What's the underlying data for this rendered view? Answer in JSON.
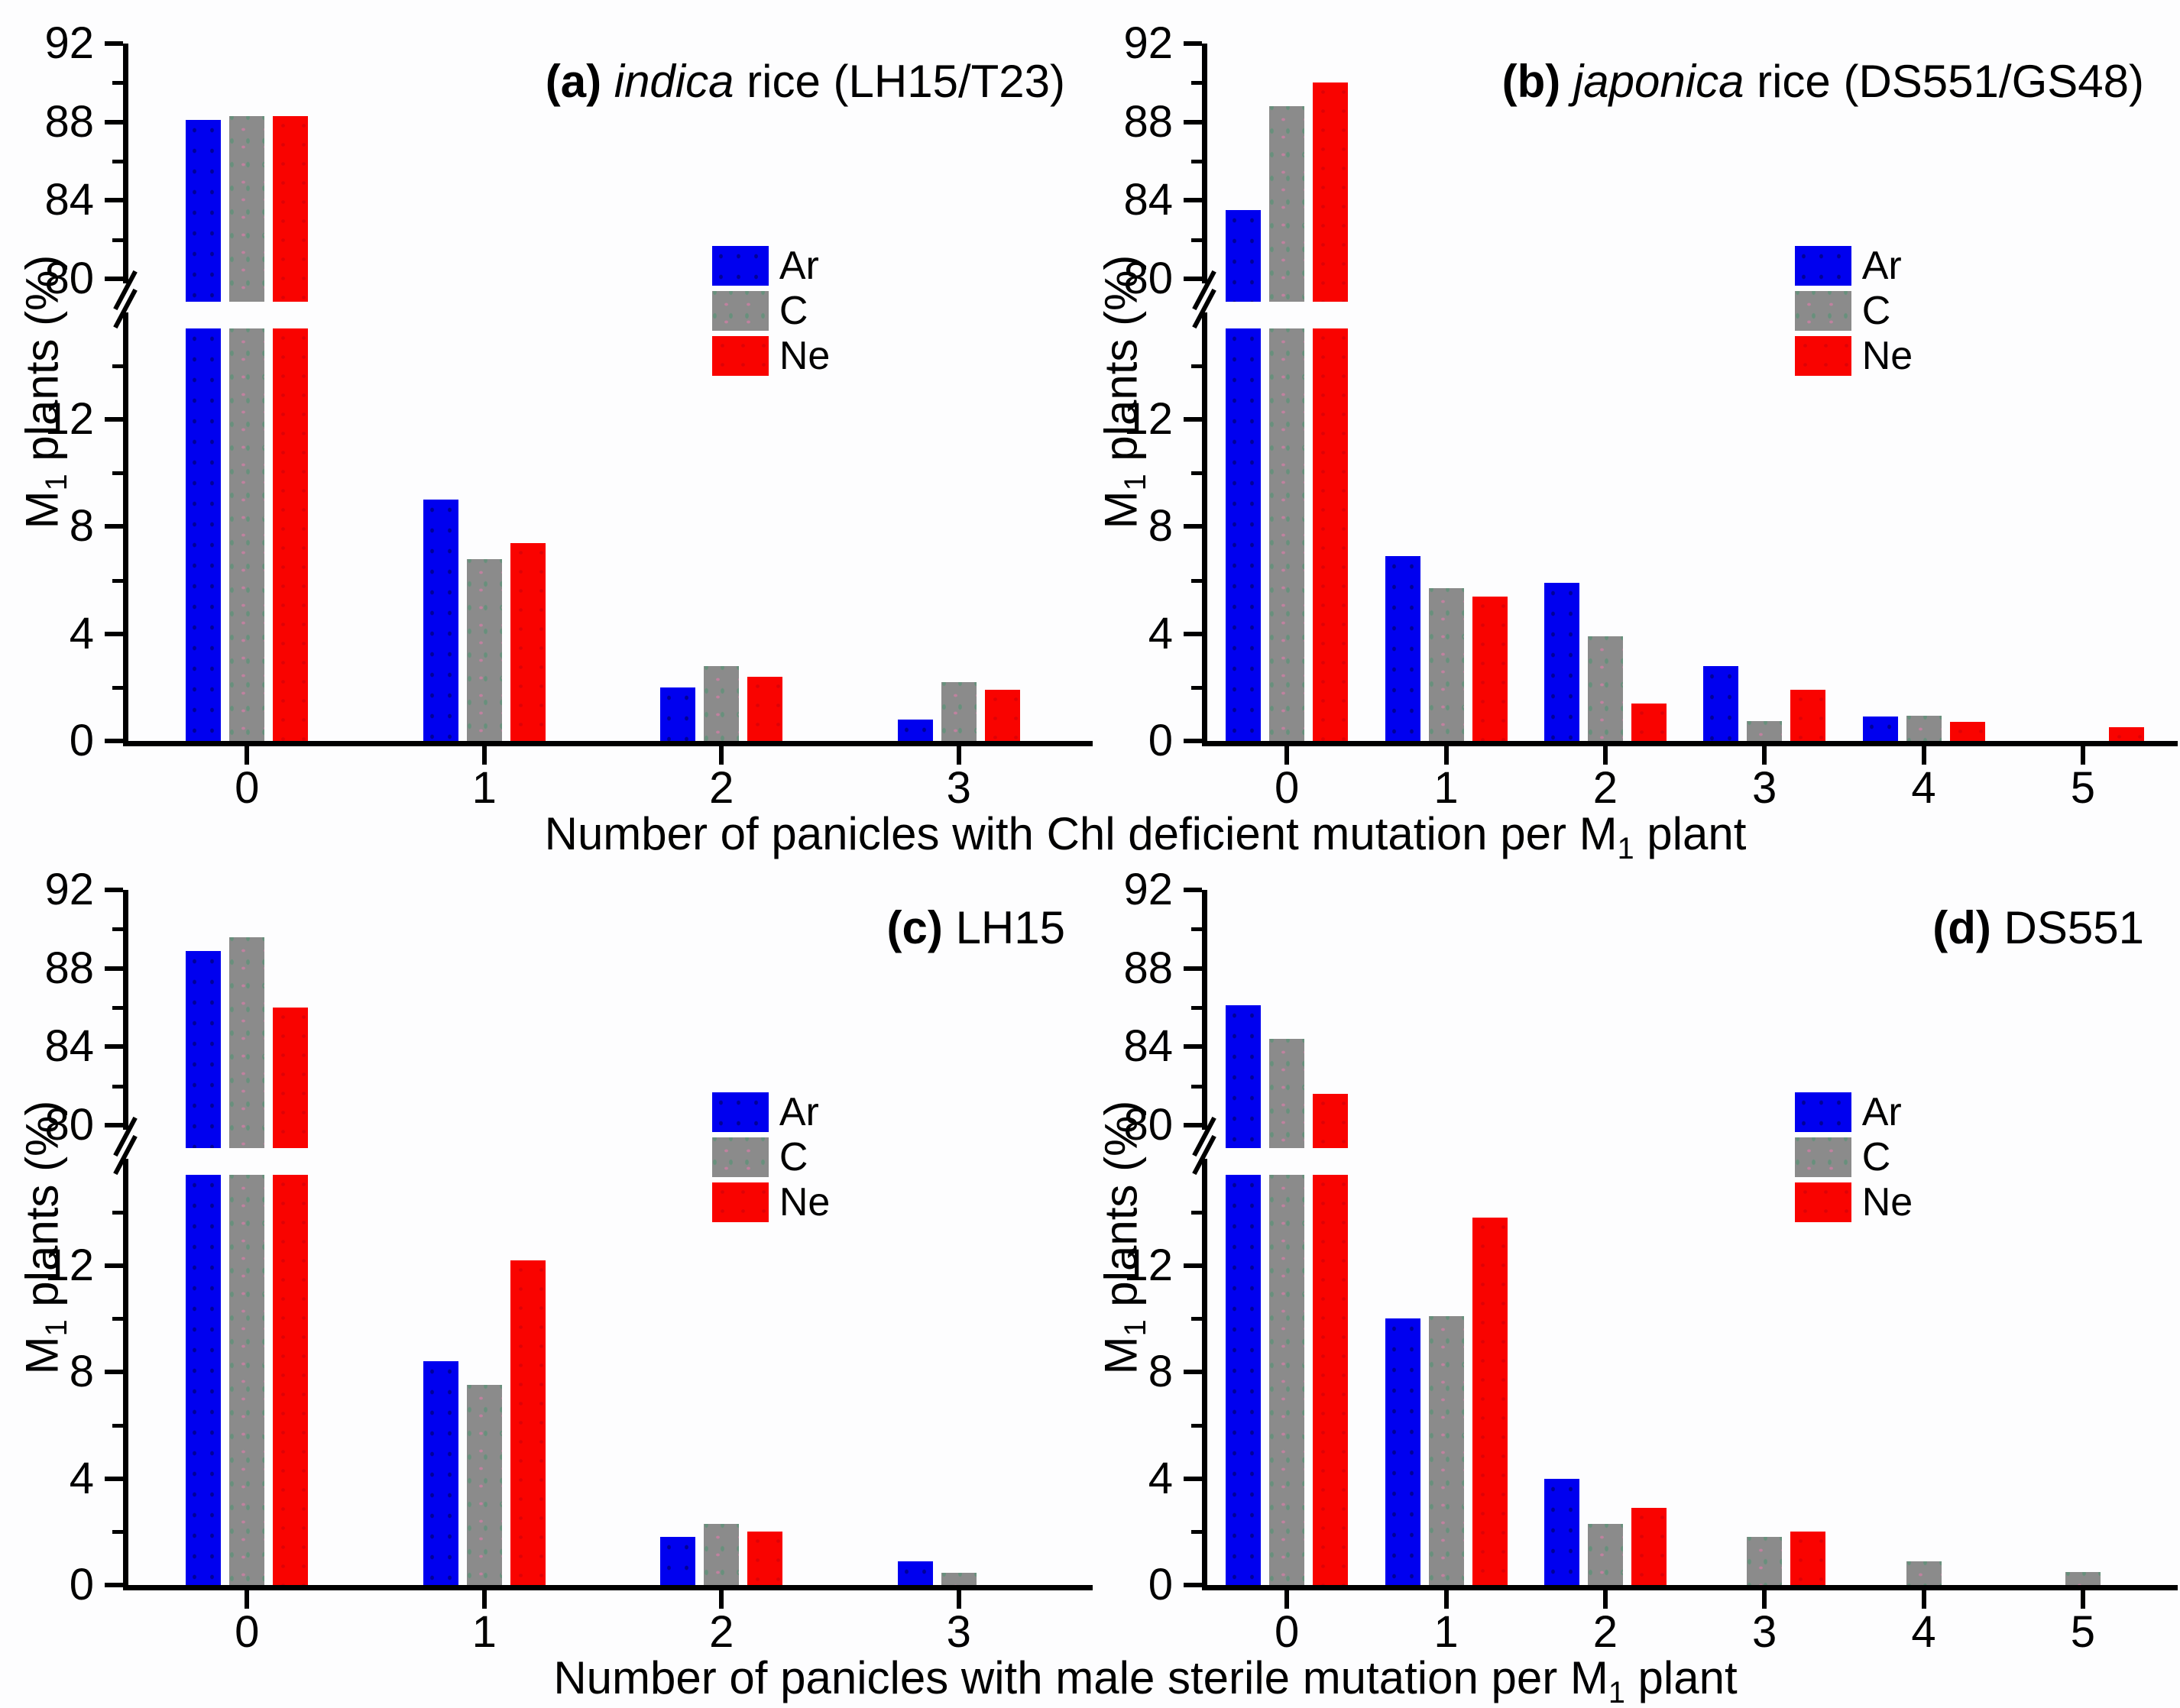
{
  "figure": {
    "y_label": {
      "prefix": "M",
      "sub": "1",
      "rest": " plants (%)"
    },
    "x_label_top": {
      "prefix": "Number of panicles with Chl deficient mutation per M",
      "sub": "1",
      "rest": " plant"
    },
    "x_label_bottom": {
      "prefix": "Number of panicles with male sterile mutation per M",
      "sub": "1",
      "rest": " plant"
    },
    "background": "#ffffff",
    "axis_color": "#000000"
  },
  "legend": {
    "position": "inside-upper-middle",
    "items": [
      {
        "label": "Ar",
        "color": "#0000ef"
      },
      {
        "label": "C",
        "color": "#8b8b8b"
      },
      {
        "label": "Ne",
        "color": "#f90300"
      }
    ]
  },
  "y_axis": {
    "broken": true,
    "upper_range": [
      80,
      92
    ],
    "upper_ticks": [
      80,
      84,
      88,
      92
    ],
    "upper_minor_ticks": [
      82,
      86,
      90
    ],
    "lower_range_max": 15.4,
    "lower_ticks": [
      0,
      4,
      8,
      12
    ],
    "lower_minor_ticks": [
      2,
      6,
      10,
      14
    ]
  },
  "chart_data": [
    {
      "id": "a",
      "type": "bar",
      "title": {
        "bold": "(a)",
        "italic": "indica",
        "rest": " rice (LH15/T23)"
      },
      "categories": [
        "0",
        "1",
        "2",
        "3"
      ],
      "series": [
        {
          "name": "Ar",
          "values": [
            88.1,
            9.0,
            2.0,
            0.8
          ]
        },
        {
          "name": "C",
          "values": [
            88.3,
            6.8,
            2.8,
            2.2
          ]
        },
        {
          "name": "Ne",
          "values": [
            88.3,
            7.4,
            2.4,
            1.9
          ]
        }
      ]
    },
    {
      "id": "b",
      "type": "bar",
      "title": {
        "bold": "(b)",
        "italic": "japonica",
        "rest": " rice (DS551/GS48)"
      },
      "categories": [
        "0",
        "1",
        "2",
        "3",
        "4",
        "5"
      ],
      "series": [
        {
          "name": "Ar",
          "values": [
            83.5,
            6.9,
            5.9,
            2.8,
            0.9,
            0
          ]
        },
        {
          "name": "C",
          "values": [
            88.8,
            5.7,
            3.9,
            0.75,
            0.95,
            0
          ]
        },
        {
          "name": "Ne",
          "values": [
            90.0,
            5.4,
            1.4,
            1.9,
            0.7,
            0.5
          ]
        }
      ]
    },
    {
      "id": "c",
      "type": "bar",
      "title": {
        "bold": "(c)",
        "italic": "",
        "rest": " LH15"
      },
      "categories": [
        "0",
        "1",
        "2",
        "3"
      ],
      "series": [
        {
          "name": "Ar",
          "values": [
            88.9,
            8.4,
            1.8,
            0.9
          ]
        },
        {
          "name": "C",
          "values": [
            89.6,
            7.5,
            2.3,
            0.45
          ]
        },
        {
          "name": "Ne",
          "values": [
            86.0,
            12.2,
            2.0,
            0
          ]
        }
      ]
    },
    {
      "id": "d",
      "type": "bar",
      "title": {
        "bold": "(d)",
        "italic": "",
        "rest": " DS551"
      },
      "categories": [
        "0",
        "1",
        "2",
        "3",
        "4",
        "5"
      ],
      "series": [
        {
          "name": "Ar",
          "values": [
            86.1,
            10.0,
            4.0,
            0,
            0,
            0
          ]
        },
        {
          "name": "C",
          "values": [
            84.4,
            10.1,
            2.3,
            1.8,
            0.9,
            0.5
          ]
        },
        {
          "name": "Ne",
          "values": [
            81.6,
            13.8,
            2.9,
            2.0,
            0,
            0
          ]
        }
      ]
    }
  ]
}
